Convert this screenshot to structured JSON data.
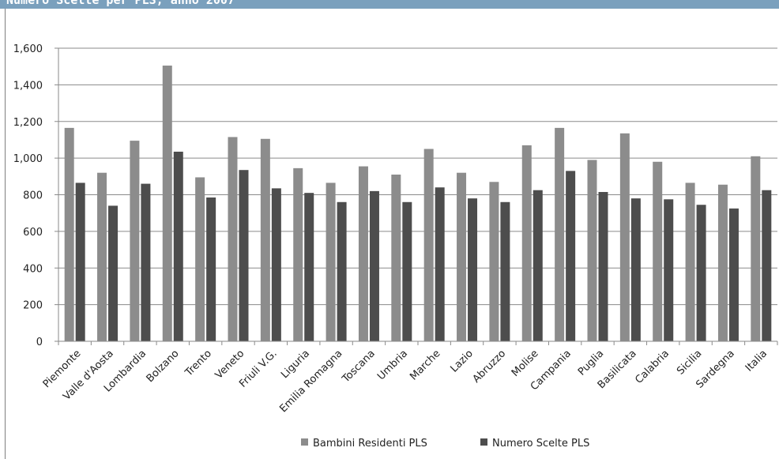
{
  "header": {
    "title": "Numero Scelte per PLS, anno 2007"
  },
  "chart_data": {
    "type": "bar",
    "categories": [
      "Piemonte",
      "Valle d'Aosta",
      "Lombardia",
      "Bolzano",
      "Trento",
      "Veneto",
      "Friuli V.G.",
      "Liguria",
      "Emilia Romagna",
      "Toscana",
      "Umbria",
      "Marche",
      "Lazio",
      "Abruzzo",
      "Molise",
      "Campania",
      "Puglia",
      "Basilicata",
      "Calabria",
      "Sicilia",
      "Sardegna",
      "Italia"
    ],
    "series": [
      {
        "name": "Bambini Residenti PLS",
        "color": "#8c8c8c",
        "values": [
          1165,
          920,
          1095,
          1505,
          895,
          1115,
          1105,
          945,
          865,
          955,
          910,
          1050,
          920,
          870,
          1070,
          1165,
          990,
          1135,
          980,
          865,
          855,
          1010
        ]
      },
      {
        "name": "Numero Scelte PLS",
        "color": "#4d4d4d",
        "values": [
          865,
          740,
          860,
          1035,
          785,
          935,
          835,
          810,
          760,
          820,
          760,
          840,
          780,
          760,
          825,
          930,
          815,
          780,
          775,
          745,
          725,
          825
        ]
      }
    ],
    "ylim": [
      0,
      1600
    ],
    "yticks": [
      "0",
      "200",
      "400",
      "600",
      "800",
      "1,000",
      "1,200",
      "1,400",
      "1,600"
    ],
    "grid": true,
    "legend": "bottom"
  }
}
